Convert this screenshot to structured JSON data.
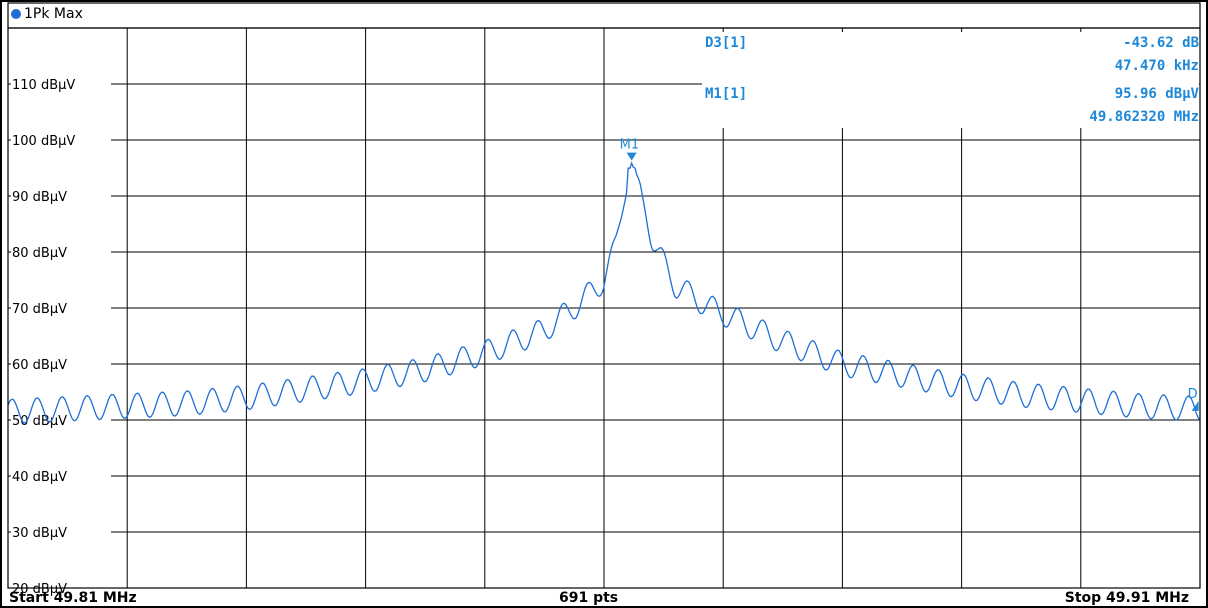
{
  "trace": {
    "label": "1Pk Max",
    "color": "#1f6fd6"
  },
  "markers": [
    {
      "name": "D3[1]",
      "value1": "-43.62 dB",
      "value2": "47.470 kHz"
    },
    {
      "name": "M1[1]",
      "value1": "95.96 dBµV",
      "value2": "49.862320 MHz"
    }
  ],
  "marker_labels": {
    "m1": "M1",
    "d3": "D"
  },
  "footer": {
    "start": "Start 49.81 MHz",
    "points": "691 pts",
    "stop": "Stop 49.91 MHz"
  },
  "chart_data": {
    "type": "line",
    "x_unit": "MHz",
    "xlim": [
      49.81,
      49.91
    ],
    "ylim": [
      20,
      120
    ],
    "y_unit": "dBµV",
    "points": 691,
    "y_ticks": [
      {
        "value": 110,
        "label": "110 dBµV"
      },
      {
        "value": 100,
        "label": "100 dBµV"
      },
      {
        "value": 90,
        "label": "90 dBµV"
      },
      {
        "value": 80,
        "label": "80 dBµV"
      },
      {
        "value": 70,
        "label": "70 dBµV"
      },
      {
        "value": 60,
        "label": "60 dBµV"
      },
      {
        "value": 50,
        "label": "50 dBµV"
      },
      {
        "value": 40,
        "label": "40 dBµV"
      },
      {
        "value": 30,
        "label": "30 dBµV"
      },
      {
        "value": 20,
        "label": "20 dBµV"
      }
    ],
    "x_divisions": 10,
    "grid": true,
    "peak": {
      "x": 49.86232,
      "y": 95.96
    },
    "delta_marker": {
      "x": 49.9098,
      "y": 52.34
    },
    "series": [
      {
        "color": "#1f6fd6",
        "x": [
          49.81,
          49.815,
          49.82,
          49.825,
          49.83,
          49.835,
          49.84,
          49.845,
          49.85,
          49.855,
          49.858,
          49.86,
          49.861,
          49.862,
          49.8623,
          49.863,
          49.864,
          49.866,
          49.869,
          49.875,
          49.88,
          49.885,
          49.89,
          49.895,
          49.9,
          49.905,
          49.91
        ],
        "y": [
          51.5,
          52,
          52.5,
          53,
          54,
          55.5,
          57,
          59,
          62,
          66,
          71,
          75,
          82,
          92,
          96,
          92,
          82,
          74,
          70,
          64,
          60,
          58,
          56,
          54.5,
          53.5,
          52.5,
          52
        ]
      }
    ]
  }
}
